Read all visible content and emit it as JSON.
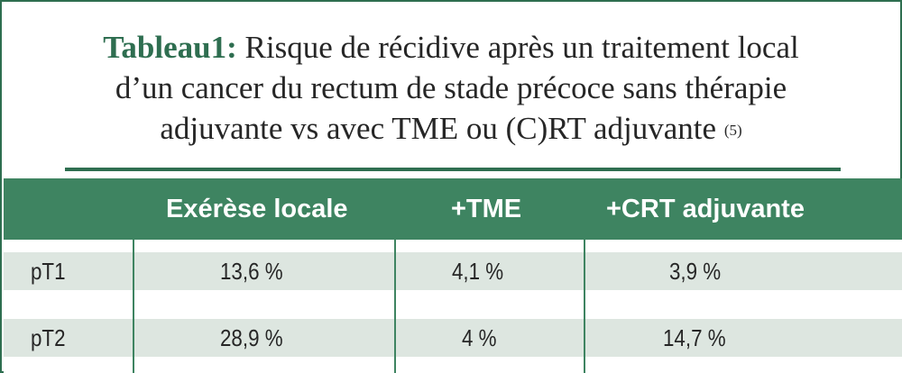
{
  "title": {
    "lead": "Tableau1:",
    "text": "Risque de récidive après un traitement local d’un cancer du rectum de stade précoce sans thérapie adjuvante vs avec TME ou (C)RT adjuvante",
    "line1": "Risque de récidive après un traitement local",
    "line2": "d’un cancer du rectum de stade précoce sans thérapie",
    "line3": "adjuvante vs avec TME ou (C)RT adjuvante",
    "ref": "(5)"
  },
  "table": {
    "headers": [
      "",
      "Exérèse locale",
      "+TME",
      "+CRT adjuvante"
    ],
    "rows": [
      [
        "pT1",
        "13,6 %",
        "4,1 %",
        "3,9 %"
      ],
      [
        "pT2",
        "28,9 %",
        "4 %",
        "14,7 %"
      ]
    ]
  },
  "colors": {
    "brand_green": "#2e6e50",
    "header_bg": "#3e8461",
    "row_band": "#dde6e0",
    "text": "#262626"
  }
}
